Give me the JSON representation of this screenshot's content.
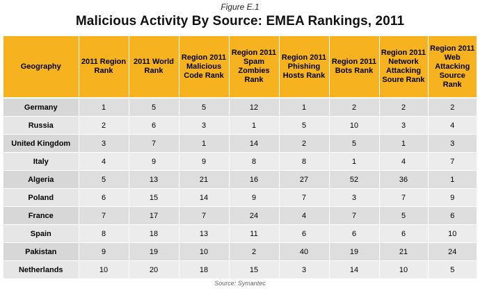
{
  "figure_label": "Figure E.1",
  "title": "Malicious Activity By Source: EMEA Rankings, 2011",
  "source": "Source: Symantec",
  "colors": {
    "header_bg": "#f7b21f",
    "row_odd": "#dedede",
    "row_even": "#ececec"
  },
  "table": {
    "headers": [
      "Geography",
      "2011 Region Rank",
      "2011 World Rank",
      "Region 2011 Malicious Code Rank",
      "Region 2011 Spam Zombies Rank",
      "Region 2011 Phishing Hosts Rank",
      "Region 2011 Bots Rank",
      "Region 2011 Network Attacking Soure Rank",
      "Region 2011 Web Attacking Source Rank"
    ],
    "rows": [
      [
        "Germany",
        "1",
        "5",
        "5",
        "12",
        "1",
        "2",
        "2",
        "2"
      ],
      [
        "Russia",
        "2",
        "6",
        "3",
        "1",
        "5",
        "10",
        "3",
        "4"
      ],
      [
        "United Kingdom",
        "3",
        "7",
        "1",
        "14",
        "2",
        "5",
        "1",
        "3"
      ],
      [
        "Italy",
        "4",
        "9",
        "9",
        "8",
        "8",
        "1",
        "4",
        "7"
      ],
      [
        "Algeria",
        "5",
        "13",
        "21",
        "16",
        "27",
        "52",
        "36",
        "1"
      ],
      [
        "Poland",
        "6",
        "15",
        "14",
        "9",
        "7",
        "3",
        "7",
        "9"
      ],
      [
        "France",
        "7",
        "17",
        "7",
        "24",
        "4",
        "7",
        "5",
        "6"
      ],
      [
        "Spain",
        "8",
        "18",
        "13",
        "11",
        "6",
        "6",
        "6",
        "10"
      ],
      [
        "Pakistan",
        "9",
        "19",
        "10",
        "2",
        "40",
        "19",
        "21",
        "24"
      ],
      [
        "Netherlands",
        "10",
        "20",
        "18",
        "15",
        "3",
        "14",
        "10",
        "5"
      ]
    ]
  }
}
